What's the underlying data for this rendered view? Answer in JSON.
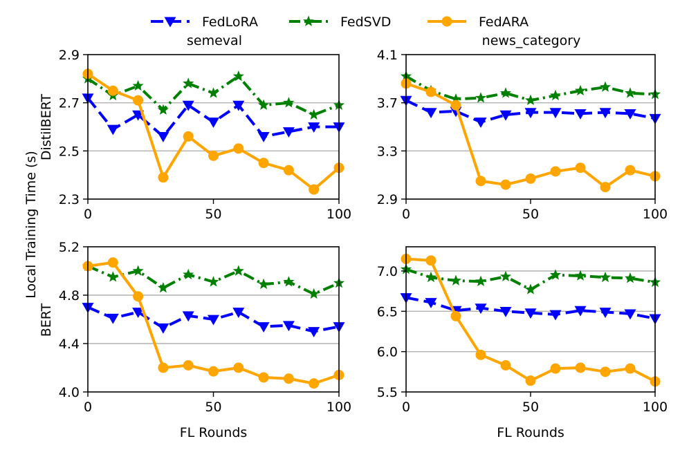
{
  "figure": {
    "ylabel_shared": "Local Training Time (s)",
    "row_labels": [
      "DistilBERT",
      "BERT"
    ]
  },
  "legend": {
    "entries": [
      {
        "name": "FedLoRA",
        "color": "#0000ff",
        "marker": "triangle-down",
        "dash": "dashed"
      },
      {
        "name": "FedSVD",
        "color": "#008000",
        "marker": "star",
        "dash": "dashdot"
      },
      {
        "name": "FedARA",
        "color": "#ffa500",
        "marker": "circle",
        "dash": "solid"
      }
    ]
  },
  "chart_data": [
    {
      "type": "line",
      "title": "semeval",
      "xlabel": "",
      "ylabel": "",
      "x": [
        0,
        10,
        20,
        30,
        40,
        50,
        60,
        70,
        80,
        90,
        100
      ],
      "xlim": [
        0,
        100
      ],
      "ylim": [
        2.3,
        2.9
      ],
      "xticks": [
        "0",
        "50",
        "100"
      ],
      "xtick_values": [
        0,
        50,
        100
      ],
      "yticks": [
        "2.3",
        "2.5",
        "2.7",
        "2.9"
      ],
      "ytick_values": [
        2.3,
        2.5,
        2.7,
        2.9
      ],
      "grid": "horizontal",
      "series": [
        {
          "name": "FedLoRA",
          "values": [
            2.72,
            2.59,
            2.65,
            2.56,
            2.69,
            2.62,
            2.69,
            2.56,
            2.58,
            2.6,
            2.6
          ]
        },
        {
          "name": "FedSVD",
          "values": [
            2.8,
            2.73,
            2.77,
            2.67,
            2.78,
            2.74,
            2.81,
            2.69,
            2.7,
            2.65,
            2.69
          ]
        },
        {
          "name": "FedARA",
          "values": [
            2.82,
            2.75,
            2.71,
            2.39,
            2.56,
            2.48,
            2.51,
            2.45,
            2.42,
            2.34,
            2.43
          ]
        }
      ]
    },
    {
      "type": "line",
      "title": "news_category",
      "xlabel": "",
      "ylabel": "",
      "x": [
        0,
        10,
        20,
        30,
        40,
        50,
        60,
        70,
        80,
        90,
        100
      ],
      "xlim": [
        0,
        100
      ],
      "ylim": [
        2.9,
        4.1
      ],
      "xticks": [
        "0",
        "50",
        "100"
      ],
      "xtick_values": [
        0,
        50,
        100
      ],
      "yticks": [
        "2.9",
        "3.3",
        "3.7",
        "4.1"
      ],
      "ytick_values": [
        2.9,
        3.3,
        3.7,
        4.1
      ],
      "grid": "horizontal",
      "series": [
        {
          "name": "FedLoRA",
          "values": [
            3.72,
            3.62,
            3.63,
            3.54,
            3.6,
            3.62,
            3.62,
            3.61,
            3.62,
            3.61,
            3.57
          ]
        },
        {
          "name": "FedSVD",
          "values": [
            3.92,
            3.8,
            3.73,
            3.74,
            3.78,
            3.72,
            3.76,
            3.8,
            3.83,
            3.78,
            3.77
          ]
        },
        {
          "name": "FedARA",
          "values": [
            3.86,
            3.79,
            3.68,
            3.05,
            3.02,
            3.07,
            3.13,
            3.16,
            3.0,
            3.14,
            3.09
          ]
        }
      ]
    },
    {
      "type": "line",
      "title": "",
      "xlabel": "FL Rounds",
      "ylabel": "",
      "x": [
        0,
        10,
        20,
        30,
        40,
        50,
        60,
        70,
        80,
        90,
        100
      ],
      "xlim": [
        0,
        100
      ],
      "ylim": [
        4.0,
        5.2
      ],
      "xticks": [
        "0",
        "50",
        "100"
      ],
      "xtick_values": [
        0,
        50,
        100
      ],
      "yticks": [
        "4.0",
        "4.4",
        "4.8",
        "5.2"
      ],
      "ytick_values": [
        4.0,
        4.4,
        4.8,
        5.2
      ],
      "grid": "horizontal",
      "series": [
        {
          "name": "FedLoRA",
          "values": [
            4.7,
            4.61,
            4.66,
            4.53,
            4.63,
            4.6,
            4.66,
            4.54,
            4.55,
            4.5,
            4.54
          ]
        },
        {
          "name": "FedSVD",
          "values": [
            5.04,
            4.95,
            5.0,
            4.86,
            4.97,
            4.91,
            5.0,
            4.89,
            4.91,
            4.81,
            4.9
          ]
        },
        {
          "name": "FedARA",
          "values": [
            5.04,
            5.07,
            4.79,
            4.2,
            4.22,
            4.17,
            4.2,
            4.12,
            4.11,
            4.07,
            4.14
          ]
        }
      ]
    },
    {
      "type": "line",
      "title": "",
      "xlabel": "FL Rounds",
      "ylabel": "",
      "x": [
        0,
        10,
        20,
        30,
        40,
        50,
        60,
        70,
        80,
        90,
        100
      ],
      "xlim": [
        0,
        100
      ],
      "ylim": [
        5.5,
        7.3
      ],
      "xticks": [
        "0",
        "50",
        "100"
      ],
      "xtick_values": [
        0,
        50,
        100
      ],
      "yticks": [
        "5.5",
        "6.0",
        "6.5",
        "7.0"
      ],
      "ytick_values": [
        5.5,
        6.0,
        6.5,
        7.0
      ],
      "grid": "horizontal",
      "series": [
        {
          "name": "FedLoRA",
          "values": [
            6.67,
            6.61,
            6.51,
            6.54,
            6.5,
            6.48,
            6.46,
            6.51,
            6.49,
            6.47,
            6.41
          ]
        },
        {
          "name": "FedSVD",
          "values": [
            7.02,
            6.92,
            6.88,
            6.87,
            6.93,
            6.77,
            6.95,
            6.94,
            6.92,
            6.91,
            6.86
          ]
        },
        {
          "name": "FedARA",
          "values": [
            7.15,
            7.13,
            6.44,
            5.96,
            5.83,
            5.64,
            5.79,
            5.8,
            5.75,
            5.79,
            5.63
          ]
        }
      ]
    }
  ]
}
